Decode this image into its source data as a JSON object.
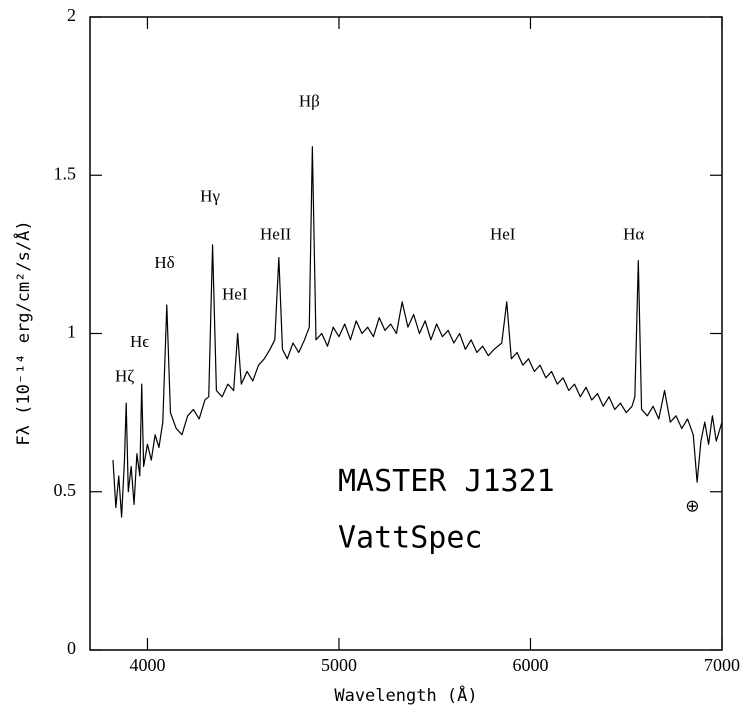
{
  "chart_data": {
    "type": "line",
    "xlabel": "Wavelength (Å)",
    "ylabel": "Fλ  (10⁻¹⁴ erg/cm²/s/Å)",
    "xlim": [
      3700,
      7000
    ],
    "xticks": [
      4000,
      5000,
      6000,
      7000
    ],
    "ylim": [
      0,
      2
    ],
    "yticks": [
      0,
      0.5,
      1,
      1.5,
      2
    ],
    "x": [
      3820,
      3835,
      3850,
      3865,
      3880,
      3889,
      3900,
      3915,
      3930,
      3945,
      3960,
      3970,
      3980,
      4000,
      4020,
      4040,
      4060,
      4080,
      4101,
      4120,
      4150,
      4180,
      4210,
      4240,
      4270,
      4300,
      4320,
      4340,
      4360,
      4390,
      4420,
      4450,
      4471,
      4490,
      4520,
      4550,
      4580,
      4610,
      4640,
      4665,
      4686,
      4705,
      4730,
      4760,
      4790,
      4820,
      4845,
      4861,
      4880,
      4910,
      4940,
      4970,
      5000,
      5030,
      5060,
      5090,
      5120,
      5150,
      5180,
      5210,
      5240,
      5270,
      5300,
      5330,
      5360,
      5390,
      5420,
      5450,
      5480,
      5510,
      5540,
      5570,
      5600,
      5630,
      5660,
      5690,
      5720,
      5750,
      5780,
      5810,
      5850,
      5876,
      5900,
      5930,
      5960,
      5990,
      6020,
      6050,
      6080,
      6110,
      6140,
      6170,
      6200,
      6230,
      6260,
      6290,
      6320,
      6350,
      6380,
      6410,
      6440,
      6470,
      6500,
      6530,
      6545,
      6563,
      6580,
      6610,
      6640,
      6670,
      6700,
      6730,
      6760,
      6790,
      6820,
      6850,
      6870,
      6890,
      6910,
      6930,
      6950,
      6970,
      7000
    ],
    "series": [
      {
        "color": "#000000",
        "values": [
          0.6,
          0.45,
          0.55,
          0.42,
          0.6,
          0.78,
          0.5,
          0.58,
          0.46,
          0.62,
          0.55,
          0.84,
          0.58,
          0.65,
          0.6,
          0.68,
          0.64,
          0.72,
          1.09,
          0.75,
          0.7,
          0.68,
          0.74,
          0.76,
          0.73,
          0.79,
          0.8,
          1.28,
          0.82,
          0.8,
          0.84,
          0.82,
          1.0,
          0.84,
          0.88,
          0.85,
          0.9,
          0.92,
          0.95,
          0.98,
          1.24,
          0.95,
          0.92,
          0.97,
          0.94,
          0.98,
          1.02,
          1.59,
          0.98,
          1.0,
          0.96,
          1.02,
          0.99,
          1.03,
          0.98,
          1.04,
          1.0,
          1.02,
          0.99,
          1.05,
          1.01,
          1.03,
          1.0,
          1.1,
          1.02,
          1.06,
          1.0,
          1.04,
          0.98,
          1.03,
          0.99,
          1.01,
          0.97,
          1.0,
          0.95,
          0.98,
          0.94,
          0.96,
          0.93,
          0.95,
          0.97,
          1.1,
          0.92,
          0.94,
          0.9,
          0.92,
          0.88,
          0.9,
          0.86,
          0.88,
          0.84,
          0.86,
          0.82,
          0.84,
          0.8,
          0.83,
          0.79,
          0.81,
          0.77,
          0.8,
          0.76,
          0.78,
          0.75,
          0.77,
          0.8,
          1.23,
          0.76,
          0.74,
          0.77,
          0.73,
          0.82,
          0.72,
          0.74,
          0.7,
          0.73,
          0.68,
          0.53,
          0.66,
          0.72,
          0.65,
          0.74,
          0.66,
          0.72
        ]
      }
    ],
    "annotations": [
      {
        "text": "Hζ",
        "x": 3881,
        "y": 0.86
      },
      {
        "text": "Hϵ",
        "x": 3959,
        "y": 0.97
      },
      {
        "text": "Hδ",
        "x": 4089,
        "y": 1.22
      },
      {
        "text": "Hγ",
        "x": 4327,
        "y": 1.43
      },
      {
        "text": "HeI",
        "x": 4456,
        "y": 1.12
      },
      {
        "text": "HeII",
        "x": 4669,
        "y": 1.31
      },
      {
        "text": "Hβ",
        "x": 4845,
        "y": 1.73
      },
      {
        "text": "HeI",
        "x": 5855,
        "y": 1.31
      },
      {
        "text": "Hα",
        "x": 6539,
        "y": 1.31
      },
      {
        "text": "⊕",
        "x": 6845,
        "y": 0.45
      }
    ],
    "labels": [
      {
        "text": "MASTER J1321",
        "x": 4995,
        "y": 0.53
      },
      {
        "text": "VattSpec",
        "x": 4995,
        "y": 0.35
      }
    ]
  }
}
